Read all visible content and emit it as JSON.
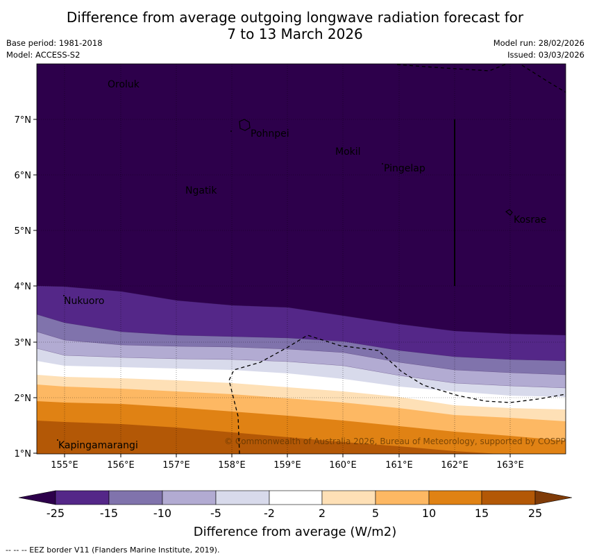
{
  "header": {
    "title_line1": "Difference from average outgoing longwave radiation forecast for",
    "title_line2": "7 to 13 March 2026",
    "base_period": "Base period: 1981-2018",
    "model": "Model: ACCESS-S2",
    "model_run": "Model run: 28/02/2026",
    "issued": "Issued: 03/03/2026"
  },
  "map": {
    "lat_labels": [
      "7°N",
      "6°N",
      "5°N",
      "4°N",
      "3°N",
      "2°N",
      "1°N"
    ],
    "lon_labels": [
      "155°E",
      "156°E",
      "157°E",
      "158°E",
      "159°E",
      "160°E",
      "161°E",
      "162°E",
      "163°E"
    ],
    "places": {
      "oroluk": "Oroluk",
      "pohnpei": "Pohnpei",
      "mokil": "Mokil",
      "pingelap": "Pingelap",
      "ngatik": "Ngatik",
      "kosrae": "Kosrae",
      "nukuoro": "Nukuoro",
      "kapingamarangi": "Kapingamarangi"
    },
    "copyright": "© Commonwealth of Australia 2026, Bureau of Meteorology, supported by COSPPac"
  },
  "legend": {
    "ticks": [
      "-25",
      "-15",
      "-10",
      "-5",
      "-2",
      "2",
      "5",
      "10",
      "15",
      "25"
    ],
    "colors": [
      "#2d004b",
      "#542788",
      "#8073ac",
      "#b2abd2",
      "#d8daeb",
      "#ffffff",
      "#fee0b6",
      "#fdb863",
      "#e08214",
      "#b35806",
      "#7f3b08"
    ],
    "label": "Difference from average (W/m2)"
  },
  "footnote": "--  --  -- EEZ border V11 (Flanders Marine Institute, 2019)."
}
